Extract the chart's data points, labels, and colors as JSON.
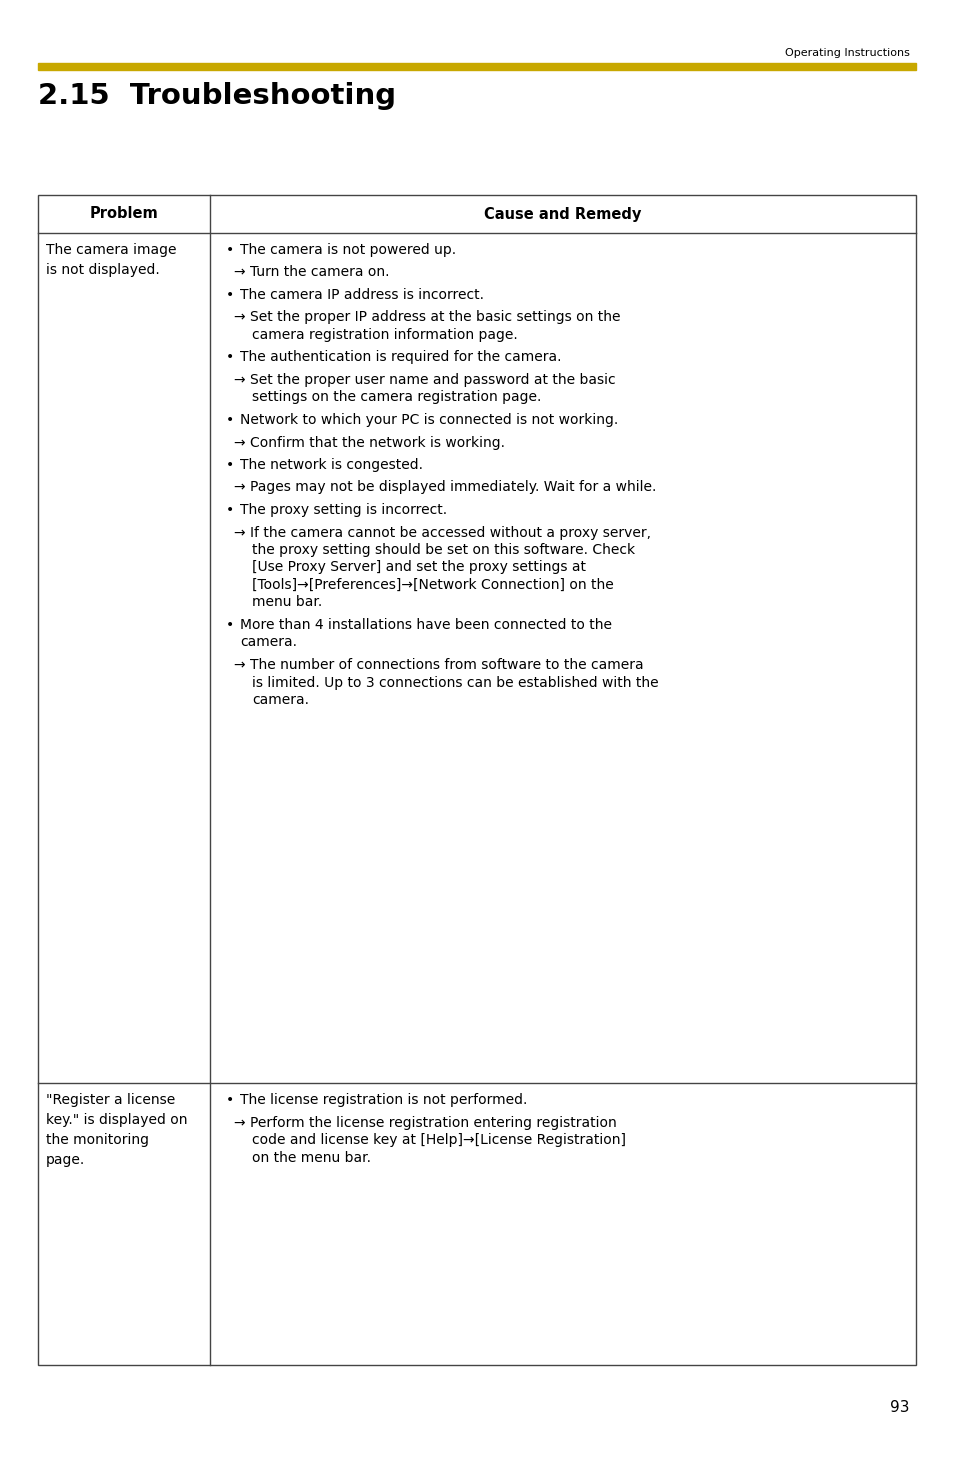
{
  "page_bg": "#ffffff",
  "header_text": "Operating Instructions",
  "gold_bar_color": "#C8A800",
  "title": "2.15  Troubleshooting",
  "table_border_color": "#444444",
  "col1_header": "Problem",
  "col2_header": "Cause and Remedy",
  "page_number": "93",
  "row1_problem": "The camera image\nis not displayed.",
  "row2_problem": "\"Register a license\nkey.\" is displayed on\nthe monitoring\npage.",
  "row1_causes": [
    {
      "bullet": true,
      "indent": 0,
      "text": "The camera is not powered up."
    },
    {
      "bullet": false,
      "indent": 1,
      "text": "→ Turn the camera on."
    },
    {
      "bullet": true,
      "indent": 0,
      "text": "The camera IP address is incorrect."
    },
    {
      "bullet": false,
      "indent": 1,
      "text": "→ Set the proper IP address at the basic settings on the\n    camera registration information page."
    },
    {
      "bullet": true,
      "indent": 0,
      "text": "The authentication is required for the camera."
    },
    {
      "bullet": false,
      "indent": 1,
      "text": "→ Set the proper user name and password at the basic\n    settings on the camera registration page."
    },
    {
      "bullet": true,
      "indent": 0,
      "text": "Network to which your PC is connected is not working."
    },
    {
      "bullet": false,
      "indent": 1,
      "text": "→ Confirm that the network is working."
    },
    {
      "bullet": true,
      "indent": 0,
      "text": "The network is congested."
    },
    {
      "bullet": false,
      "indent": 1,
      "text": "→ Pages may not be displayed immediately. Wait for a while."
    },
    {
      "bullet": true,
      "indent": 0,
      "text": "The proxy setting is incorrect."
    },
    {
      "bullet": false,
      "indent": 1,
      "text": "→ If the camera cannot be accessed without a proxy server,\n    the proxy setting should be set on this software. Check\n    [Use Proxy Server] and set the proxy settings at\n    [Tools]→[Preferences]→[Network Connection] on the\n    menu bar."
    },
    {
      "bullet": true,
      "indent": 0,
      "text": "More than 4 installations have been connected to the\n   camera."
    },
    {
      "bullet": false,
      "indent": 1,
      "text": "→ The number of connections from software to the camera\n    is limited. Up to 3 connections can be established with the\n    camera."
    }
  ],
  "row2_causes": [
    {
      "bullet": true,
      "indent": 0,
      "text": "The license registration is not performed."
    },
    {
      "bullet": false,
      "indent": 1,
      "text": "→ Perform the license registration entering registration\n    code and license key at [Help]→[License Registration]\n    on the menu bar."
    }
  ]
}
